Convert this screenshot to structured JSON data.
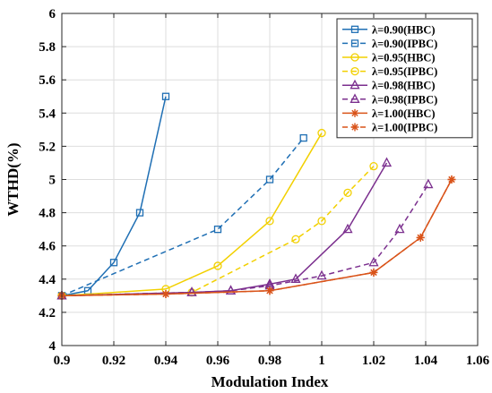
{
  "chart_data": {
    "type": "line",
    "title": "",
    "xlabel": "Modulation Index",
    "ylabel": "WTHD(%)",
    "xlim": [
      0.9,
      1.06
    ],
    "ylim": [
      4,
      6
    ],
    "xticks": [
      0.9,
      0.92,
      0.94,
      0.96,
      0.98,
      1,
      1.02,
      1.04,
      1.06
    ],
    "xtick_labels": [
      "0.9",
      "0.92",
      "0.94",
      "0.96",
      "0.98",
      "1",
      "1.02",
      "1.04",
      "1.06"
    ],
    "yticks": [
      4,
      4.2,
      4.4,
      4.6,
      4.8,
      5,
      5.2,
      5.4,
      5.6,
      5.8,
      6
    ],
    "ytick_labels": [
      "4",
      "4.2",
      "4.4",
      "4.6",
      "4.8",
      "5",
      "5.2",
      "5.4",
      "5.6",
      "5.8",
      "6"
    ],
    "grid": true,
    "legend_position": "top-right",
    "series": [
      {
        "name": "λ=0.90(HBC)",
        "color": "#1f6fb4",
        "dash": "solid",
        "marker": "square",
        "x": [
          0.9,
          0.91,
          0.92,
          0.93,
          0.94
        ],
        "y": [
          4.3,
          4.33,
          4.5,
          4.8,
          5.5
        ]
      },
      {
        "name": "λ=0.90(IPBC)",
        "color": "#1f6fb4",
        "dash": "dashed",
        "marker": "square",
        "x": [
          0.9,
          0.96,
          0.98,
          0.993
        ],
        "y": [
          4.3,
          4.7,
          5.0,
          5.25
        ]
      },
      {
        "name": "λ=0.95(HBC)",
        "color": "#f2d000",
        "dash": "solid",
        "marker": "circle",
        "x": [
          0.9,
          0.94,
          0.96,
          0.98,
          1.0
        ],
        "y": [
          4.3,
          4.34,
          4.48,
          4.75,
          5.28
        ]
      },
      {
        "name": "λ=0.95(IPBC)",
        "color": "#f2d000",
        "dash": "dashed",
        "marker": "circle",
        "x": [
          0.9,
          0.95,
          0.99,
          1.0,
          1.01,
          1.02
        ],
        "y": [
          4.3,
          4.32,
          4.64,
          4.75,
          4.92,
          5.08
        ]
      },
      {
        "name": "λ=0.98(HBC)",
        "color": "#7b2f8e",
        "dash": "solid",
        "marker": "triangle",
        "x": [
          0.9,
          0.95,
          0.965,
          0.98,
          0.99,
          1.01,
          1.025
        ],
        "y": [
          4.3,
          4.32,
          4.33,
          4.37,
          4.4,
          4.7,
          5.1
        ]
      },
      {
        "name": "λ=0.98(IPBC)",
        "color": "#7b2f8e",
        "dash": "dashed",
        "marker": "triangle",
        "x": [
          0.9,
          0.95,
          0.965,
          0.98,
          1.0,
          1.02,
          1.03,
          1.041
        ],
        "y": [
          4.3,
          4.32,
          4.33,
          4.36,
          4.42,
          4.5,
          4.7,
          4.97
        ]
      },
      {
        "name": "λ=1.00(HBC)",
        "color": "#d95319",
        "dash": "solid",
        "marker": "asterisk",
        "x": [
          0.9,
          0.94,
          0.98,
          1.02,
          1.038,
          1.05
        ],
        "y": [
          4.3,
          4.31,
          4.33,
          4.44,
          4.65,
          5.0
        ]
      },
      {
        "name": "λ=1.00(IPBC)",
        "color": "#d95319",
        "dash": "dashed",
        "marker": "asterisk",
        "x": [
          0.9,
          0.94,
          0.98,
          1.02,
          1.038,
          1.05
        ],
        "y": [
          4.3,
          4.31,
          4.33,
          4.44,
          4.65,
          5.0
        ]
      }
    ]
  }
}
